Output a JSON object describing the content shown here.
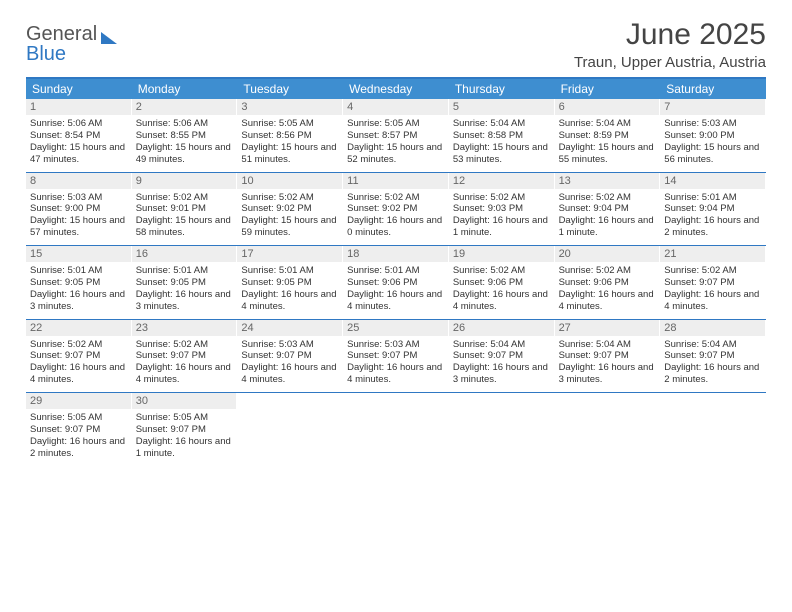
{
  "brand": {
    "part1": "General",
    "part2": "Blue"
  },
  "title": "June 2025",
  "location": "Traun, Upper Austria, Austria",
  "colors": {
    "accent": "#2f78c3",
    "header_bg": "#3e8ed0",
    "daynum_bg": "#eeeeee"
  },
  "dow": [
    "Sunday",
    "Monday",
    "Tuesday",
    "Wednesday",
    "Thursday",
    "Friday",
    "Saturday"
  ],
  "days": [
    {
      "n": "1",
      "sr": "5:06 AM",
      "ss": "8:54 PM",
      "dl": "15 hours and 47 minutes."
    },
    {
      "n": "2",
      "sr": "5:06 AM",
      "ss": "8:55 PM",
      "dl": "15 hours and 49 minutes."
    },
    {
      "n": "3",
      "sr": "5:05 AM",
      "ss": "8:56 PM",
      "dl": "15 hours and 51 minutes."
    },
    {
      "n": "4",
      "sr": "5:05 AM",
      "ss": "8:57 PM",
      "dl": "15 hours and 52 minutes."
    },
    {
      "n": "5",
      "sr": "5:04 AM",
      "ss": "8:58 PM",
      "dl": "15 hours and 53 minutes."
    },
    {
      "n": "6",
      "sr": "5:04 AM",
      "ss": "8:59 PM",
      "dl": "15 hours and 55 minutes."
    },
    {
      "n": "7",
      "sr": "5:03 AM",
      "ss": "9:00 PM",
      "dl": "15 hours and 56 minutes."
    },
    {
      "n": "8",
      "sr": "5:03 AM",
      "ss": "9:00 PM",
      "dl": "15 hours and 57 minutes."
    },
    {
      "n": "9",
      "sr": "5:02 AM",
      "ss": "9:01 PM",
      "dl": "15 hours and 58 minutes."
    },
    {
      "n": "10",
      "sr": "5:02 AM",
      "ss": "9:02 PM",
      "dl": "15 hours and 59 minutes."
    },
    {
      "n": "11",
      "sr": "5:02 AM",
      "ss": "9:02 PM",
      "dl": "16 hours and 0 minutes."
    },
    {
      "n": "12",
      "sr": "5:02 AM",
      "ss": "9:03 PM",
      "dl": "16 hours and 1 minute."
    },
    {
      "n": "13",
      "sr": "5:02 AM",
      "ss": "9:04 PM",
      "dl": "16 hours and 1 minute."
    },
    {
      "n": "14",
      "sr": "5:01 AM",
      "ss": "9:04 PM",
      "dl": "16 hours and 2 minutes."
    },
    {
      "n": "15",
      "sr": "5:01 AM",
      "ss": "9:05 PM",
      "dl": "16 hours and 3 minutes."
    },
    {
      "n": "16",
      "sr": "5:01 AM",
      "ss": "9:05 PM",
      "dl": "16 hours and 3 minutes."
    },
    {
      "n": "17",
      "sr": "5:01 AM",
      "ss": "9:05 PM",
      "dl": "16 hours and 4 minutes."
    },
    {
      "n": "18",
      "sr": "5:01 AM",
      "ss": "9:06 PM",
      "dl": "16 hours and 4 minutes."
    },
    {
      "n": "19",
      "sr": "5:02 AM",
      "ss": "9:06 PM",
      "dl": "16 hours and 4 minutes."
    },
    {
      "n": "20",
      "sr": "5:02 AM",
      "ss": "9:06 PM",
      "dl": "16 hours and 4 minutes."
    },
    {
      "n": "21",
      "sr": "5:02 AM",
      "ss": "9:07 PM",
      "dl": "16 hours and 4 minutes."
    },
    {
      "n": "22",
      "sr": "5:02 AM",
      "ss": "9:07 PM",
      "dl": "16 hours and 4 minutes."
    },
    {
      "n": "23",
      "sr": "5:02 AM",
      "ss": "9:07 PM",
      "dl": "16 hours and 4 minutes."
    },
    {
      "n": "24",
      "sr": "5:03 AM",
      "ss": "9:07 PM",
      "dl": "16 hours and 4 minutes."
    },
    {
      "n": "25",
      "sr": "5:03 AM",
      "ss": "9:07 PM",
      "dl": "16 hours and 4 minutes."
    },
    {
      "n": "26",
      "sr": "5:04 AM",
      "ss": "9:07 PM",
      "dl": "16 hours and 3 minutes."
    },
    {
      "n": "27",
      "sr": "5:04 AM",
      "ss": "9:07 PM",
      "dl": "16 hours and 3 minutes."
    },
    {
      "n": "28",
      "sr": "5:04 AM",
      "ss": "9:07 PM",
      "dl": "16 hours and 2 minutes."
    },
    {
      "n": "29",
      "sr": "5:05 AM",
      "ss": "9:07 PM",
      "dl": "16 hours and 2 minutes."
    },
    {
      "n": "30",
      "sr": "5:05 AM",
      "ss": "9:07 PM",
      "dl": "16 hours and 1 minute."
    }
  ],
  "labels": {
    "sunrise": "Sunrise: ",
    "sunset": "Sunset: ",
    "daylight": "Daylight: "
  }
}
